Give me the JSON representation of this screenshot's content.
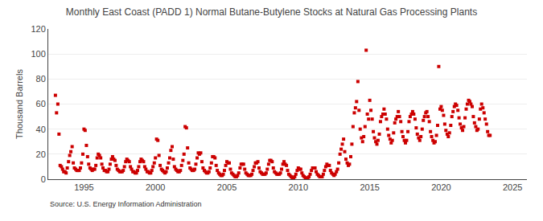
{
  "chart_data": {
    "type": "scatter",
    "title": "Monthly East Coast (PADD 1) Normal Butane-Butylene Stocks at Natural Gas Processing Plants",
    "ylabel": "Thousand Barrels",
    "source": "Source: U.S. Energy Information Administration",
    "color": "#CC0000",
    "marker": "square",
    "grid": "y",
    "xlim": [
      1992.5,
      2026.0
    ],
    "ylim": [
      0,
      120
    ],
    "xticks": [
      1995,
      2000,
      2005,
      2010,
      2015,
      2020,
      2025
    ],
    "yticks": [
      0,
      20,
      40,
      60,
      80,
      100,
      120
    ],
    "x": [
      1993.0,
      1993.08,
      1993.17,
      1993.25,
      1993.33,
      1993.42,
      1993.5,
      1993.58,
      1993.67,
      1993.75,
      1993.83,
      1993.92,
      1994.0,
      1994.08,
      1994.17,
      1994.25,
      1994.33,
      1994.42,
      1994.5,
      1994.58,
      1994.67,
      1994.75,
      1994.83,
      1994.92,
      1995.0,
      1995.08,
      1995.17,
      1995.25,
      1995.33,
      1995.42,
      1995.5,
      1995.58,
      1995.67,
      1995.75,
      1995.83,
      1995.92,
      1996.0,
      1996.08,
      1996.17,
      1996.25,
      1996.33,
      1996.42,
      1996.5,
      1996.58,
      1996.67,
      1996.75,
      1996.83,
      1996.92,
      1997.0,
      1997.08,
      1997.17,
      1997.25,
      1997.33,
      1997.42,
      1997.5,
      1997.58,
      1997.67,
      1997.75,
      1997.83,
      1997.92,
      1998.0,
      1998.08,
      1998.17,
      1998.25,
      1998.33,
      1998.42,
      1998.5,
      1998.58,
      1998.67,
      1998.75,
      1998.83,
      1998.92,
      1999.0,
      1999.08,
      1999.17,
      1999.25,
      1999.33,
      1999.42,
      1999.5,
      1999.58,
      1999.67,
      1999.75,
      1999.83,
      1999.92,
      2000.0,
      2000.08,
      2000.17,
      2000.25,
      2000.33,
      2000.42,
      2000.5,
      2000.58,
      2000.67,
      2000.75,
      2000.83,
      2000.92,
      2001.0,
      2001.08,
      2001.17,
      2001.25,
      2001.33,
      2001.42,
      2001.5,
      2001.58,
      2001.67,
      2001.75,
      2001.83,
      2001.92,
      2002.0,
      2002.08,
      2002.17,
      2002.25,
      2002.33,
      2002.42,
      2002.5,
      2002.58,
      2002.67,
      2002.75,
      2002.83,
      2002.92,
      2003.0,
      2003.08,
      2003.17,
      2003.25,
      2003.33,
      2003.42,
      2003.5,
      2003.58,
      2003.67,
      2003.75,
      2003.83,
      2003.92,
      2004.0,
      2004.08,
      2004.17,
      2004.25,
      2004.33,
      2004.42,
      2004.5,
      2004.58,
      2004.67,
      2004.75,
      2004.83,
      2004.92,
      2005.0,
      2005.08,
      2005.17,
      2005.25,
      2005.33,
      2005.42,
      2005.5,
      2005.58,
      2005.67,
      2005.75,
      2005.83,
      2005.92,
      2006.0,
      2006.08,
      2006.17,
      2006.25,
      2006.33,
      2006.42,
      2006.5,
      2006.58,
      2006.67,
      2006.75,
      2006.83,
      2006.92,
      2007.0,
      2007.08,
      2007.17,
      2007.25,
      2007.33,
      2007.42,
      2007.5,
      2007.58,
      2007.67,
      2007.75,
      2007.83,
      2007.92,
      2008.0,
      2008.08,
      2008.17,
      2008.25,
      2008.33,
      2008.42,
      2008.5,
      2008.58,
      2008.67,
      2008.75,
      2008.83,
      2008.92,
      2009.0,
      2009.08,
      2009.17,
      2009.25,
      2009.33,
      2009.42,
      2009.5,
      2009.58,
      2009.67,
      2009.75,
      2009.83,
      2009.92,
      2010.0,
      2010.08,
      2010.17,
      2010.25,
      2010.33,
      2010.42,
      2010.5,
      2010.58,
      2010.67,
      2010.75,
      2010.83,
      2010.92,
      2011.0,
      2011.08,
      2011.17,
      2011.25,
      2011.33,
      2011.42,
      2011.5,
      2011.58,
      2011.67,
      2011.75,
      2011.83,
      2011.92,
      2012.0,
      2012.08,
      2012.17,
      2012.25,
      2012.33,
      2012.42,
      2012.5,
      2012.58,
      2012.67,
      2012.75,
      2012.83,
      2012.92,
      2013.0,
      2013.08,
      2013.17,
      2013.25,
      2013.33,
      2013.42,
      2013.5,
      2013.58,
      2013.67,
      2013.75,
      2013.83,
      2013.92,
      2014.0,
      2014.08,
      2014.17,
      2014.25,
      2014.33,
      2014.42,
      2014.5,
      2014.58,
      2014.67,
      2014.75,
      2014.83,
      2014.92,
      2015.0,
      2015.08,
      2015.17,
      2015.25,
      2015.33,
      2015.42,
      2015.5,
      2015.58,
      2015.67,
      2015.75,
      2015.83,
      2015.92,
      2016.0,
      2016.08,
      2016.17,
      2016.25,
      2016.33,
      2016.42,
      2016.5,
      2016.58,
      2016.67,
      2016.75,
      2016.83,
      2016.92,
      2017.0,
      2017.08,
      2017.17,
      2017.25,
      2017.33,
      2017.42,
      2017.5,
      2017.58,
      2017.67,
      2017.75,
      2017.83,
      2017.92,
      2018.0,
      2018.08,
      2018.17,
      2018.25,
      2018.33,
      2018.42,
      2018.5,
      2018.58,
      2018.67,
      2018.75,
      2018.83,
      2018.92,
      2019.0,
      2019.08,
      2019.17,
      2019.25,
      2019.33,
      2019.42,
      2019.5,
      2019.58,
      2019.67,
      2019.75,
      2019.83,
      2019.92,
      2020.0,
      2020.08,
      2020.17,
      2020.25,
      2020.33,
      2020.42,
      2020.5,
      2020.58,
      2020.67,
      2020.75,
      2020.83,
      2020.92,
      2021.0,
      2021.08,
      2021.17,
      2021.25,
      2021.33,
      2021.42,
      2021.5,
      2021.58,
      2021.67,
      2021.75,
      2021.83,
      2021.92,
      2022.0,
      2022.08,
      2022.17,
      2022.25,
      2022.33,
      2022.42,
      2022.5,
      2022.58,
      2022.67,
      2022.75,
      2022.83,
      2022.92,
      2023.0,
      2023.08,
      2023.17,
      2023.25,
      2023.33,
      2023.42
    ],
    "values": [
      67,
      53,
      60,
      36,
      11,
      10,
      8,
      6,
      6,
      5,
      9,
      14,
      19,
      22,
      26,
      13,
      9,
      8,
      7,
      7,
      7,
      9,
      13,
      20,
      40,
      39,
      27,
      18,
      12,
      9,
      8,
      7,
      8,
      8,
      11,
      17,
      20,
      19,
      17,
      12,
      9,
      7,
      7,
      6,
      6,
      8,
      12,
      16,
      18,
      16,
      15,
      11,
      8,
      7,
      6,
      6,
      6,
      7,
      10,
      14,
      16,
      15,
      14,
      10,
      8,
      6,
      6,
      5,
      5,
      7,
      10,
      14,
      16,
      15,
      14,
      10,
      8,
      6,
      6,
      5,
      5,
      7,
      10,
      13,
      17,
      32,
      31,
      19,
      11,
      8,
      7,
      6,
      5,
      6,
      9,
      13,
      17,
      23,
      26,
      16,
      10,
      8,
      7,
      6,
      6,
      7,
      11,
      15,
      20,
      42,
      41,
      25,
      13,
      9,
      8,
      7,
      7,
      8,
      12,
      17,
      21,
      20,
      21,
      14,
      9,
      7,
      6,
      5,
      5,
      6,
      9,
      13,
      18,
      18,
      17,
      11,
      7,
      5,
      4,
      3,
      3,
      4,
      7,
      11,
      14,
      13,
      13,
      8,
      5,
      4,
      3,
      2,
      2,
      3,
      5,
      9,
      12,
      12,
      12,
      8,
      5,
      4,
      3,
      3,
      3,
      4,
      7,
      10,
      13,
      13,
      14,
      9,
      6,
      5,
      4,
      4,
      4,
      5,
      8,
      12,
      15,
      15,
      14,
      9,
      6,
      5,
      4,
      4,
      4,
      5,
      8,
      12,
      14,
      12,
      11,
      7,
      4,
      3,
      2,
      1,
      1,
      2,
      4,
      7,
      9,
      8,
      8,
      5,
      3,
      2,
      1,
      1,
      1,
      2,
      4,
      7,
      9,
      9,
      9,
      6,
      4,
      3,
      2,
      2,
      2,
      4,
      7,
      10,
      12,
      11,
      11,
      7,
      5,
      4,
      3,
      4,
      6,
      8,
      13,
      20,
      24,
      28,
      32,
      22,
      16,
      13,
      11,
      12,
      18,
      28,
      42,
      53,
      57,
      62,
      78,
      55,
      40,
      33,
      30,
      34,
      42,
      103,
      52,
      48,
      63,
      55,
      48,
      38,
      33,
      30,
      28,
      31,
      36,
      46,
      50,
      52,
      56,
      52,
      48,
      40,
      35,
      32,
      29,
      31,
      37,
      45,
      48,
      50,
      54,
      50,
      46,
      38,
      34,
      31,
      29,
      31,
      38,
      46,
      50,
      52,
      54,
      52,
      48,
      41,
      36,
      33,
      31,
      34,
      40,
      47,
      50,
      53,
      54,
      50,
      46,
      38,
      34,
      31,
      29,
      30,
      35,
      43,
      90,
      56,
      58,
      55,
      51,
      44,
      39,
      36,
      34,
      37,
      43,
      50,
      54,
      58,
      60,
      59,
      55,
      49,
      44,
      41,
      39,
      42,
      49,
      56,
      60,
      63,
      62,
      60,
      58,
      50,
      45,
      42,
      39,
      40,
      48,
      56,
      60,
      57,
      53,
      48,
      44,
      38,
      35,
      35
    ]
  }
}
